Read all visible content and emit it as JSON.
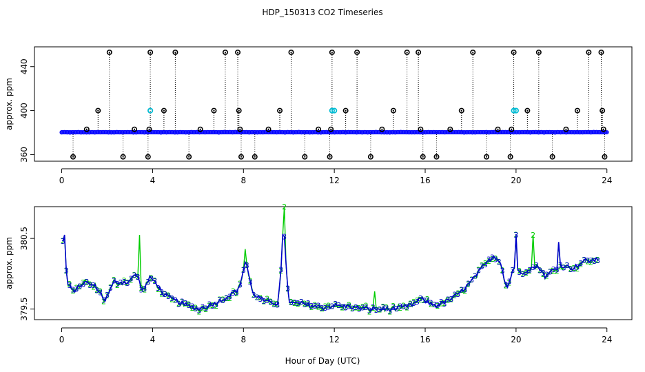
{
  "title": "HDP_150313  CO2 Timeseries",
  "xlabel": "Hour of Day (UTC)",
  "chart_data": [
    {
      "type": "scatter",
      "panel": "top",
      "ylabel": "approx. ppm",
      "xlim": [
        -1.2,
        25.1
      ],
      "ylim": [
        354,
        458
      ],
      "xticks": [
        0,
        4,
        8,
        12,
        16,
        20,
        24
      ],
      "yticks": [
        360,
        400,
        440
      ],
      "baseline": 380.3,
      "baseline_series_color": "#0000ff",
      "spike_color": "#000000",
      "spike_marker_color": "#000000",
      "cyan_marker_color": "#00bcd4",
      "spikes": [
        {
          "x": 0.5,
          "y": 358
        },
        {
          "x": 1.1,
          "y": 383
        },
        {
          "x": 1.6,
          "y": 400
        },
        {
          "x": 2.1,
          "y": 453
        },
        {
          "x": 2.7,
          "y": 358
        },
        {
          "x": 3.2,
          "y": 383
        },
        {
          "x": 3.8,
          "y": 358
        },
        {
          "x": 3.85,
          "y": 383
        },
        {
          "x": 3.9,
          "y": 453
        },
        {
          "x": 4.5,
          "y": 400
        },
        {
          "x": 5.0,
          "y": 453
        },
        {
          "x": 5.6,
          "y": 358
        },
        {
          "x": 6.1,
          "y": 383
        },
        {
          "x": 6.7,
          "y": 400
        },
        {
          "x": 7.2,
          "y": 453
        },
        {
          "x": 7.75,
          "y": 453
        },
        {
          "x": 7.8,
          "y": 400
        },
        {
          "x": 7.85,
          "y": 383
        },
        {
          "x": 7.9,
          "y": 358
        },
        {
          "x": 8.5,
          "y": 358
        },
        {
          "x": 9.1,
          "y": 383
        },
        {
          "x": 9.6,
          "y": 400
        },
        {
          "x": 10.1,
          "y": 453
        },
        {
          "x": 10.7,
          "y": 358
        },
        {
          "x": 11.3,
          "y": 383
        },
        {
          "x": 11.8,
          "y": 358
        },
        {
          "x": 11.85,
          "y": 383
        },
        {
          "x": 11.9,
          "y": 453
        },
        {
          "x": 12.5,
          "y": 400
        },
        {
          "x": 13.0,
          "y": 453
        },
        {
          "x": 13.6,
          "y": 358
        },
        {
          "x": 14.1,
          "y": 383
        },
        {
          "x": 14.6,
          "y": 400
        },
        {
          "x": 15.2,
          "y": 453
        },
        {
          "x": 15.7,
          "y": 453
        },
        {
          "x": 15.8,
          "y": 383
        },
        {
          "x": 15.9,
          "y": 358
        },
        {
          "x": 16.5,
          "y": 358
        },
        {
          "x": 17.1,
          "y": 383
        },
        {
          "x": 17.6,
          "y": 400
        },
        {
          "x": 18.1,
          "y": 453
        },
        {
          "x": 18.7,
          "y": 358
        },
        {
          "x": 19.2,
          "y": 383
        },
        {
          "x": 19.75,
          "y": 358
        },
        {
          "x": 19.8,
          "y": 383
        },
        {
          "x": 19.9,
          "y": 453
        },
        {
          "x": 20.5,
          "y": 400
        },
        {
          "x": 21.0,
          "y": 453
        },
        {
          "x": 21.6,
          "y": 358
        },
        {
          "x": 22.2,
          "y": 383
        },
        {
          "x": 22.7,
          "y": 400
        },
        {
          "x": 23.2,
          "y": 453
        },
        {
          "x": 23.75,
          "y": 453
        },
        {
          "x": 23.8,
          "y": 400
        },
        {
          "x": 23.85,
          "y": 383
        },
        {
          "x": 23.9,
          "y": 358
        }
      ],
      "cyan_points": [
        {
          "x": 3.9,
          "y": 400
        },
        {
          "x": 11.9,
          "y": 400
        },
        {
          "x": 12.0,
          "y": 400
        },
        {
          "x": 19.9,
          "y": 400
        },
        {
          "x": 20.0,
          "y": 400
        }
      ]
    },
    {
      "type": "line",
      "panel": "bottom",
      "ylabel": "approx. ppm",
      "xlim": [
        -1.2,
        25.1
      ],
      "ylim": [
        379.35,
        380.95
      ],
      "xticks": [
        0,
        4,
        8,
        12,
        16,
        20,
        24
      ],
      "yticks": [
        379.5,
        380.5
      ],
      "series": [
        {
          "name": "3",
          "label_char": "3",
          "color": "#0000cc"
        },
        {
          "name": "2",
          "label_char": "2",
          "color": "#00cc00"
        }
      ],
      "anchors": [
        [
          0.1,
          380.45
        ],
        [
          0.25,
          379.85
        ],
        [
          0.5,
          379.75
        ],
        [
          1.0,
          379.88
        ],
        [
          1.5,
          379.82
        ],
        [
          1.9,
          379.62
        ],
        [
          2.3,
          379.88
        ],
        [
          2.9,
          379.88
        ],
        [
          3.3,
          380.0
        ],
        [
          3.55,
          379.75
        ],
        [
          3.9,
          379.95
        ],
        [
          4.2,
          379.85
        ],
        [
          4.5,
          379.7
        ],
        [
          5.0,
          379.62
        ],
        [
          5.5,
          379.55
        ],
        [
          6.0,
          379.5
        ],
        [
          6.5,
          379.55
        ],
        [
          7.0,
          379.62
        ],
        [
          7.5,
          379.72
        ],
        [
          7.8,
          379.78
        ],
        [
          8.1,
          380.2
        ],
        [
          8.4,
          379.72
        ],
        [
          9.0,
          379.6
        ],
        [
          9.5,
          379.58
        ],
        [
          9.8,
          380.5
        ],
        [
          10.0,
          379.58
        ],
        [
          10.5,
          379.58
        ],
        [
          11.0,
          379.55
        ],
        [
          11.5,
          379.52
        ],
        [
          12.0,
          379.55
        ],
        [
          12.5,
          379.54
        ],
        [
          13.0,
          379.52
        ],
        [
          13.5,
          379.5
        ],
        [
          14.0,
          379.5
        ],
        [
          14.5,
          379.5
        ],
        [
          15.0,
          379.52
        ],
        [
          15.5,
          379.57
        ],
        [
          15.8,
          379.65
        ],
        [
          16.2,
          379.58
        ],
        [
          16.5,
          379.55
        ],
        [
          17.0,
          379.62
        ],
        [
          17.5,
          379.72
        ],
        [
          18.0,
          379.88
        ],
        [
          18.5,
          380.08
        ],
        [
          19.0,
          380.25
        ],
        [
          19.3,
          380.18
        ],
        [
          19.6,
          379.78
        ],
        [
          19.9,
          380.1
        ],
        [
          20.2,
          380.0
        ],
        [
          20.6,
          380.08
        ],
        [
          21.0,
          380.1
        ],
        [
          21.3,
          379.95
        ],
        [
          21.6,
          380.05
        ],
        [
          22.0,
          380.12
        ],
        [
          22.5,
          380.08
        ],
        [
          23.0,
          380.18
        ],
        [
          23.6,
          380.2
        ]
      ],
      "series2_spikes": [
        {
          "x": 3.45,
          "peak": 380.55
        },
        {
          "x": 8.1,
          "peak": 380.35
        },
        {
          "x": 9.8,
          "peak": 380.95
        },
        {
          "x": 13.8,
          "peak": 379.75
        },
        {
          "x": 20.75,
          "peak": 380.55
        }
      ],
      "series3_peaks": [
        {
          "x": 0.1,
          "value": 380.55
        },
        {
          "x": 9.7,
          "value": 380.55
        },
        {
          "x": 20.0,
          "value": 380.55
        },
        {
          "x": 21.9,
          "value": 380.45
        }
      ]
    }
  ]
}
